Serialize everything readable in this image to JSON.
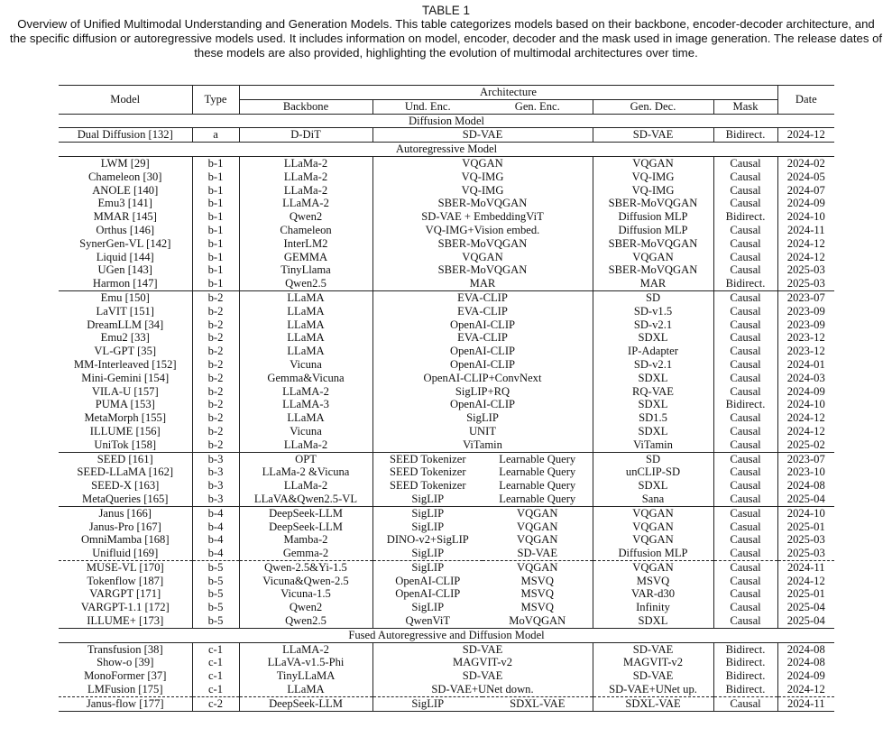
{
  "caption": {
    "label": "TABLE 1",
    "text": "Overview of Unified Multimodal Understanding and Generation Models. This table categorizes models based on their backbone, encoder-decoder architecture, and the specific diffusion or autoregressive models used. It includes information on model, encoder, decoder and the mask used in image generation. The release dates of these models are also provided, highlighting the evolution of multimodal architectures over time."
  },
  "header": {
    "model": "Model",
    "type": "Type",
    "architecture": "Architecture",
    "date": "Date",
    "backbone": "Backbone",
    "und_enc": "Und. Enc.",
    "gen_enc": "Gen. Enc.",
    "gen_dec": "Gen. Dec.",
    "mask": "Mask"
  },
  "rows": [
    {
      "section": "Diffusion Model"
    },
    {
      "model": "Dual Diffusion [132]",
      "type": "a",
      "backbone": "D-DiT",
      "enc": "SD-VAE",
      "gen_dec": "SD-VAE",
      "mask": "Bidirect.",
      "date": "2024-12"
    },
    {
      "section": "Autoregressive Model"
    },
    {
      "model": "LWM [29]",
      "type": "b-1",
      "backbone": "LLaMa-2",
      "enc": "VQGAN",
      "gen_dec": "VQGAN",
      "mask": "Causal",
      "date": "2024-02"
    },
    {
      "model": "Chameleon [30]",
      "type": "b-1",
      "backbone": "LLaMa-2",
      "enc": "VQ-IMG",
      "gen_dec": "VQ-IMG",
      "mask": "Causal",
      "date": "2024-05"
    },
    {
      "model": "ANOLE [140]",
      "type": "b-1",
      "backbone": "LLaMa-2",
      "enc": "VQ-IMG",
      "gen_dec": "VQ-IMG",
      "mask": "Causal",
      "date": "2024-07"
    },
    {
      "model": "Emu3 [141]",
      "type": "b-1",
      "backbone": "LLaMA-2",
      "enc": "SBER-MoVQGAN",
      "gen_dec": "SBER-MoVQGAN",
      "mask": "Causal",
      "date": "2024-09"
    },
    {
      "model": "MMAR [145]",
      "type": "b-1",
      "backbone": "Qwen2",
      "enc": "SD-VAE + EmbeddingViT",
      "gen_dec": "Diffusion MLP",
      "mask": "Bidirect.",
      "date": "2024-10"
    },
    {
      "model": "Orthus [146]",
      "type": "b-1",
      "backbone": "Chameleon",
      "enc": "VQ-IMG+Vision embed.",
      "gen_dec": "Diffusion MLP",
      "mask": "Causal",
      "date": "2024-11"
    },
    {
      "model": "SynerGen-VL [142]",
      "type": "b-1",
      "backbone": "InterLM2",
      "enc": "SBER-MoVQGAN",
      "gen_dec": "SBER-MoVQGAN",
      "mask": "Causal",
      "date": "2024-12"
    },
    {
      "model": "Liquid [144]",
      "type": "b-1",
      "backbone": "GEMMA",
      "enc": "VQGAN",
      "gen_dec": "VQGAN",
      "mask": "Causal",
      "date": "2024-12"
    },
    {
      "model": "UGen [143]",
      "type": "b-1",
      "backbone": "TinyLlama",
      "enc": "SBER-MoVQGAN",
      "gen_dec": "SBER-MoVQGAN",
      "mask": "Causal",
      "date": "2025-03"
    },
    {
      "model": "Harmon [147]",
      "type": "b-1",
      "backbone": "Qwen2.5",
      "enc": "MAR",
      "gen_dec": "MAR",
      "mask": "Bidirect.",
      "date": "2025-03"
    },
    {
      "sep": "solid",
      "model": "Emu [150]",
      "type": "b-2",
      "backbone": "LLaMA",
      "enc": "EVA-CLIP",
      "gen_dec": "SD",
      "mask": "Causal",
      "date": "2023-07"
    },
    {
      "model": "LaVIT [151]",
      "type": "b-2",
      "backbone": "LLaMA",
      "enc": "EVA-CLIP",
      "gen_dec": "SD-v1.5",
      "mask": "Causal",
      "date": "2023-09"
    },
    {
      "model": "DreamLLM [34]",
      "type": "b-2",
      "backbone": "LLaMA",
      "enc": "OpenAI-CLIP",
      "gen_dec": "SD-v2.1",
      "mask": "Causal",
      "date": "2023-09"
    },
    {
      "model": "Emu2 [33]",
      "type": "b-2",
      "backbone": "LLaMA",
      "enc": "EVA-CLIP",
      "gen_dec": "SDXL",
      "mask": "Causal",
      "date": "2023-12"
    },
    {
      "model": "VL-GPT [35]",
      "type": "b-2",
      "backbone": "LLaMA",
      "enc": "OpenAI-CLIP",
      "gen_dec": "IP-Adapter",
      "mask": "Causal",
      "date": "2023-12"
    },
    {
      "model": "MM-Interleaved [152]",
      "type": "b-2",
      "backbone": "Vicuna",
      "enc": "OpenAI-CLIP",
      "gen_dec": "SD-v2.1",
      "mask": "Causal",
      "date": "2024-01"
    },
    {
      "model": "Mini-Gemini [154]",
      "type": "b-2",
      "backbone": "Gemma&Vicuna",
      "enc": "OpenAI-CLIP+ConvNext",
      "gen_dec": "SDXL",
      "mask": "Causal",
      "date": "2024-03"
    },
    {
      "model": "VILA-U [157]",
      "type": "b-2",
      "backbone": "LLaMA-2",
      "enc": "SigLIP+RQ",
      "gen_dec": "RQ-VAE",
      "mask": "Causal",
      "date": "2024-09"
    },
    {
      "model": "PUMA [153]",
      "type": "b-2",
      "backbone": "LLaMA-3",
      "enc": "OpenAI-CLIP",
      "gen_dec": "SDXL",
      "mask": "Bidirect.",
      "date": "2024-10"
    },
    {
      "model": "MetaMorph [155]",
      "type": "b-2",
      "backbone": "LLaMA",
      "enc": "SigLIP",
      "gen_dec": "SD1.5",
      "mask": "Causal",
      "date": "2024-12"
    },
    {
      "model": "ILLUME [156]",
      "type": "b-2",
      "backbone": "Vicuna",
      "enc": "UNIT",
      "gen_dec": "SDXL",
      "mask": "Causal",
      "date": "2024-12"
    },
    {
      "model": "UniTok [158]",
      "type": "b-2",
      "backbone": "LLaMa-2",
      "enc": "ViTamin",
      "gen_dec": "ViTamin",
      "mask": "Causal",
      "date": "2025-02"
    },
    {
      "sep": "solid",
      "model": "SEED [161]",
      "type": "b-3",
      "backbone": "OPT",
      "und_enc": "SEED Tokenizer",
      "gen_enc": "Learnable Query",
      "gen_dec": "SD",
      "mask": "Causal",
      "date": "2023-07"
    },
    {
      "model": "SEED-LLaMA [162]",
      "type": "b-3",
      "backbone": "LLaMa-2 &Vicuna",
      "und_enc": "SEED Tokenizer",
      "gen_enc": "Learnable Query",
      "gen_dec": "unCLIP-SD",
      "mask": "Causal",
      "date": "2023-10"
    },
    {
      "model": "SEED-X [163]",
      "type": "b-3",
      "backbone": "LLaMa-2",
      "und_enc": "SEED Tokenizer",
      "gen_enc": "Learnable Query",
      "gen_dec": "SDXL",
      "mask": "Causal",
      "date": "2024-08"
    },
    {
      "model": "MetaQueries [165]",
      "type": "b-3",
      "backbone": "LLaVA&Qwen2.5-VL",
      "und_enc": "SigLIP",
      "gen_enc": "Learnable Query",
      "gen_dec": "Sana",
      "mask": "Causal",
      "date": "2025-04"
    },
    {
      "sep": "solid",
      "model": "Janus [166]",
      "type": "b-4",
      "backbone": "DeepSeek-LLM",
      "und_enc": "SigLIP",
      "gen_enc": "VQGAN",
      "gen_dec": "VQGAN",
      "mask": "Casual",
      "date": "2024-10"
    },
    {
      "model": "Janus-Pro [167]",
      "type": "b-4",
      "backbone": "DeepSeek-LLM",
      "und_enc": "SigLIP",
      "gen_enc": "VQGAN",
      "gen_dec": "VQGAN",
      "mask": "Casual",
      "date": "2025-01"
    },
    {
      "model": "OmniMamba [168]",
      "type": "b-4",
      "backbone": "Mamba-2",
      "und_enc": "DINO-v2+SigLIP",
      "gen_enc": "VQGAN",
      "gen_dec": "VQGAN",
      "mask": "Causal",
      "date": "2025-03"
    },
    {
      "model": "Unifluid [169]",
      "type": "b-4",
      "backbone": "Gemma-2",
      "und_enc": "SigLIP",
      "gen_enc": "SD-VAE",
      "gen_dec": "Diffusion MLP",
      "mask": "Causal",
      "date": "2025-03"
    },
    {
      "sep": "dashed",
      "model": "MUSE-VL [170]",
      "type": "b-5",
      "backbone": "Qwen-2.5&Yi-1.5",
      "und_enc": "SigLIP",
      "gen_enc": "VQGAN",
      "gen_dec": "VQGAN",
      "mask": "Causal",
      "date": "2024-11"
    },
    {
      "model": "Tokenflow [187]",
      "type": "b-5",
      "backbone": "Vicuna&Qwen-2.5",
      "und_enc": "OpenAI-CLIP",
      "gen_enc": "MSVQ",
      "gen_dec": "MSVQ",
      "mask": "Causal",
      "date": "2024-12"
    },
    {
      "model": "VARGPT [171]",
      "type": "b-5",
      "backbone": "Vicuna-1.5",
      "und_enc": "OpenAI-CLIP",
      "gen_enc": "MSVQ",
      "gen_dec": "VAR-d30",
      "mask": "Causal",
      "date": "2025-01"
    },
    {
      "model": "VARGPT-1.1 [172]",
      "type": "b-5",
      "backbone": "Qwen2",
      "und_enc": "SigLIP",
      "gen_enc": "MSVQ",
      "gen_dec": "Infinity",
      "mask": "Causal",
      "date": "2025-04"
    },
    {
      "model": "ILLUME+ [173]",
      "type": "b-5",
      "backbone": "Qwen2.5",
      "und_enc": "QwenViT",
      "gen_enc": "MoVQGAN",
      "gen_dec": "SDXL",
      "mask": "Causal",
      "date": "2025-04"
    },
    {
      "section": "Fused Autoregressive and Diffusion Model"
    },
    {
      "model": "Transfusion [38]",
      "type": "c-1",
      "backbone": "LLaMA-2",
      "enc": "SD-VAE",
      "gen_dec": "SD-VAE",
      "mask": "Bidirect.",
      "date": "2024-08"
    },
    {
      "model": "Show-o [39]",
      "type": "c-1",
      "backbone": "LLaVA-v1.5-Phi",
      "enc": "MAGVIT-v2",
      "gen_dec": "MAGVIT-v2",
      "mask": "Bidirect.",
      "date": "2024-08"
    },
    {
      "model": "MonoFormer [37]",
      "type": "c-1",
      "backbone": "TinyLLaMA",
      "enc": "SD-VAE",
      "gen_dec": "SD-VAE",
      "mask": "Bidirect.",
      "date": "2024-09"
    },
    {
      "model": "LMFusion [175]",
      "type": "c-1",
      "backbone": "LLaMA",
      "enc": "SD-VAE+UNet down.",
      "gen_dec": "SD-VAE+UNet up.",
      "mask": "Bidirect.",
      "date": "2024-12"
    },
    {
      "sep": "dashed",
      "model": "Janus-flow [177]",
      "type": "c-2",
      "backbone": "DeepSeek-LLM",
      "und_enc": "SigLIP",
      "gen_enc": "SDXL-VAE",
      "gen_dec": "SDXL-VAE",
      "mask": "Causal",
      "date": "2024-11"
    }
  ]
}
